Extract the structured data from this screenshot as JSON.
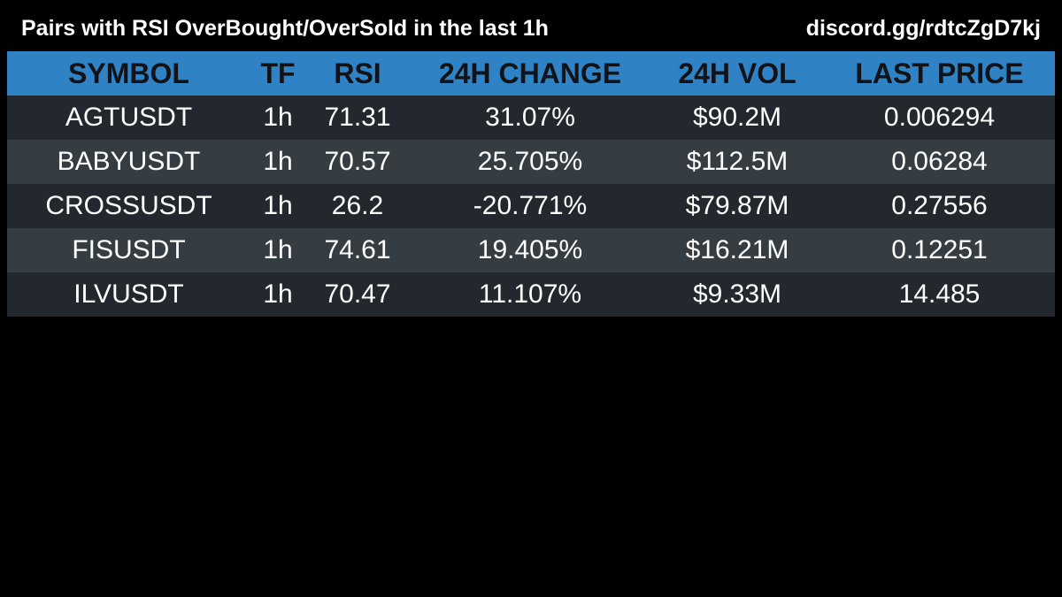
{
  "header": {
    "title": "Pairs with RSI OverBought/OverSold in the last 1h",
    "discord": "discord.gg/rdtcZgD7kj"
  },
  "colors": {
    "header_row": "#2f82c4",
    "row_dark": "#22282d",
    "row_light": "#353d43",
    "background": "#000000"
  },
  "table": {
    "columns": [
      "SYMBOL",
      "TF",
      "RSI",
      "24H CHANGE",
      "24H VOL",
      "LAST PRICE"
    ],
    "rows": [
      {
        "symbol": "AGTUSDT",
        "tf": "1h",
        "rsi": "71.31",
        "change": "31.07%",
        "vol": "$90.2M",
        "price": "0.006294"
      },
      {
        "symbol": "BABYUSDT",
        "tf": "1h",
        "rsi": "70.57",
        "change": "25.705%",
        "vol": "$112.5M",
        "price": "0.06284"
      },
      {
        "symbol": "CROSSUSDT",
        "tf": "1h",
        "rsi": "26.2",
        "change": "-20.771%",
        "vol": "$79.87M",
        "price": "0.27556"
      },
      {
        "symbol": "FISUSDT",
        "tf": "1h",
        "rsi": "74.61",
        "change": "19.405%",
        "vol": "$16.21M",
        "price": "0.12251"
      },
      {
        "symbol": "ILVUSDT",
        "tf": "1h",
        "rsi": "70.47",
        "change": "11.107%",
        "vol": "$9.33M",
        "price": "14.485"
      }
    ]
  }
}
